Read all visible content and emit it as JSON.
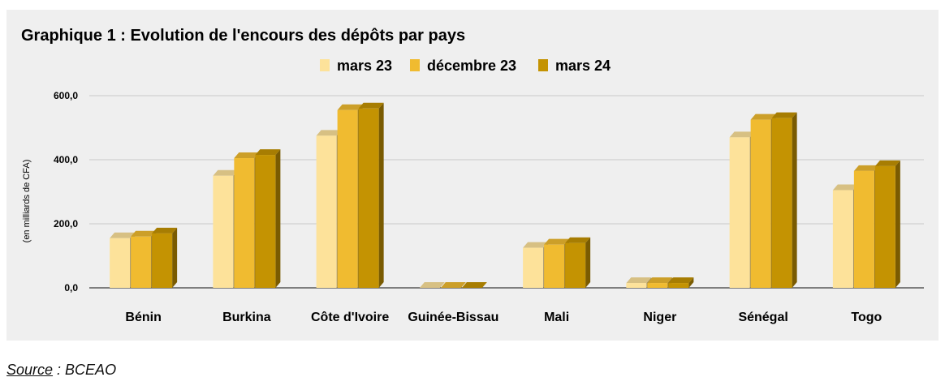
{
  "chart_data": {
    "type": "bar",
    "title": "Graphique 1 : Evolution de l'encours des dépôts par pays",
    "ylabel": "(en milliards de CFA)",
    "xlabel": "",
    "ylim": [
      0,
      600
    ],
    "yticks": [
      "0,0",
      "200,0",
      "400,0",
      "600,0"
    ],
    "ytick_values": [
      0,
      200,
      400,
      600
    ],
    "grid": true,
    "legend_position": "top-center",
    "categories": [
      "Bénin",
      "Burkina",
      "Côte d'Ivoire",
      "Guinée-Bissau",
      "Mali",
      "Niger",
      "Sénégal",
      "Togo"
    ],
    "series": [
      {
        "name": "mars 23",
        "color": "#fde29a",
        "values": [
          155,
          350,
          475,
          0,
          125,
          15,
          470,
          305
        ]
      },
      {
        "name": "décembre 23",
        "color": "#f0bb30",
        "values": [
          160,
          405,
          555,
          0,
          135,
          15,
          525,
          365
        ]
      },
      {
        "name": "mars 24",
        "color": "#c49302",
        "values": [
          170,
          415,
          560,
          0,
          140,
          15,
          530,
          380
        ]
      }
    ]
  },
  "source": {
    "label": "Source",
    "text": " : BCEAO"
  }
}
